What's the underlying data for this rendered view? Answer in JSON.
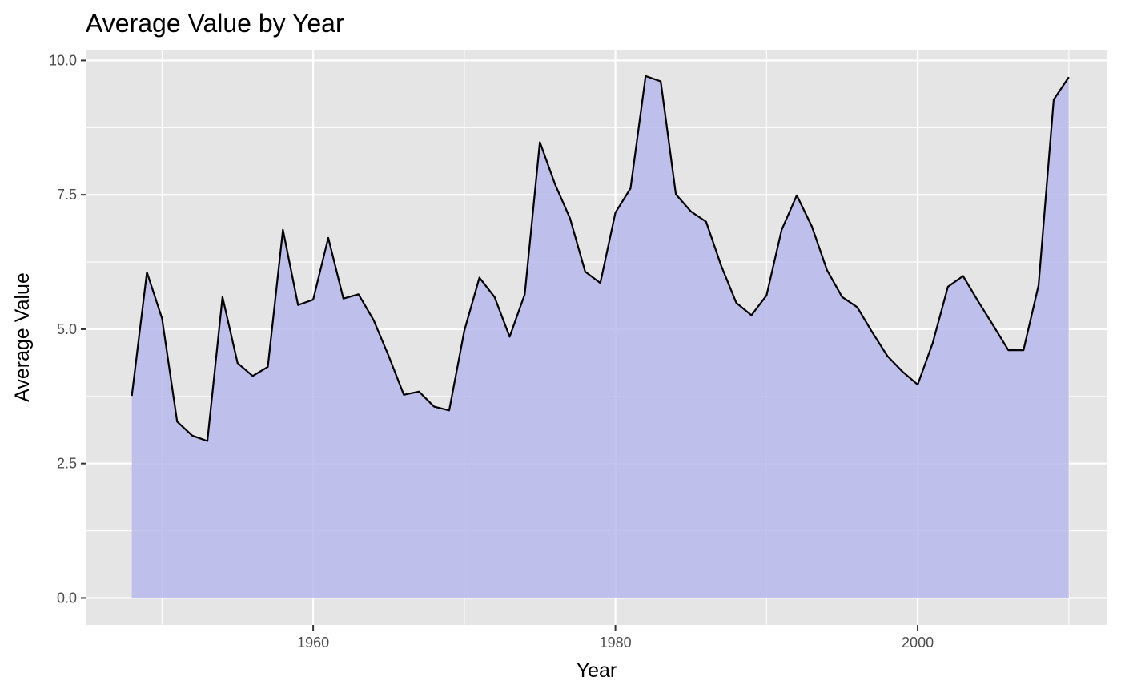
{
  "chart_data": {
    "type": "area",
    "title": "Average Value by Year",
    "xlabel": "Year",
    "ylabel": "Average Value",
    "xlim": [
      1945,
      2012.5
    ],
    "ylim": [
      -0.5,
      10.2
    ],
    "x_ticks": [
      1960,
      1980,
      2000
    ],
    "x_tick_labels": [
      "1960",
      "1980",
      "2000"
    ],
    "y_ticks": [
      0,
      2.5,
      5,
      7.5,
      10
    ],
    "y_tick_labels": [
      "0.0",
      "2.5",
      "5.0",
      "7.5",
      "10.0"
    ],
    "grid": true,
    "legend": "none",
    "series": [
      {
        "x": [
          1948,
          1949,
          1950,
          1951,
          1952,
          1953,
          1954,
          1955,
          1956,
          1957,
          1958,
          1959,
          1960,
          1961,
          1962,
          1963,
          1964,
          1965,
          1966,
          1967,
          1968,
          1969,
          1970,
          1971,
          1972,
          1973,
          1974,
          1975,
          1976,
          1977,
          1978,
          1979,
          1980,
          1981,
          1982,
          1983,
          1984,
          1985,
          1986,
          1987,
          1988,
          1989,
          1990,
          1991,
          1992,
          1993,
          1994,
          1995,
          1996,
          1997,
          1998,
          1999,
          2000,
          2001,
          2002,
          2003,
          2004,
          2005,
          2006,
          2007,
          2008,
          2009,
          2010
        ],
        "values": [
          3.76,
          6.06,
          5.2,
          3.28,
          3.02,
          2.92,
          5.6,
          4.37,
          4.13,
          4.3,
          6.85,
          5.45,
          5.55,
          6.7,
          5.57,
          5.65,
          5.17,
          4.5,
          3.78,
          3.84,
          3.56,
          3.49,
          4.97,
          5.96,
          5.6,
          4.86,
          5.65,
          8.48,
          7.7,
          7.06,
          6.07,
          5.86,
          7.17,
          7.62,
          9.71,
          9.61,
          7.51,
          7.19,
          7.0,
          6.18,
          5.49,
          5.26,
          5.63,
          6.85,
          7.49,
          6.91,
          6.1,
          5.6,
          5.41,
          4.94,
          4.5,
          4.21,
          3.97,
          4.75,
          5.79,
          5.99,
          5.52,
          5.07,
          4.61,
          4.61,
          5.82,
          9.27,
          9.69
        ]
      }
    ],
    "colors": {
      "panel": "#e5e5e5",
      "grid": "#ffffff",
      "area_fill": "#b9b9ec",
      "line": "#000000"
    }
  }
}
